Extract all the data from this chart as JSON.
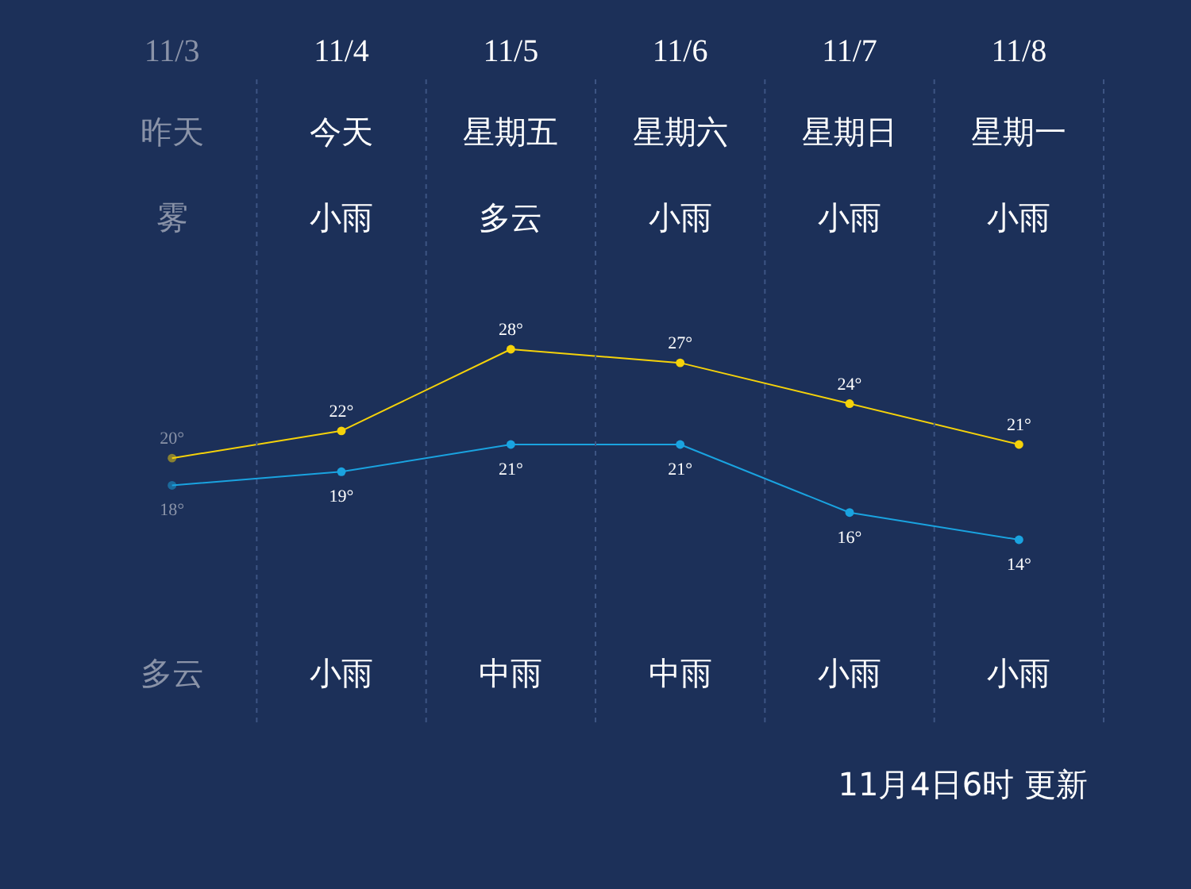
{
  "chart_data": {
    "type": "line",
    "categories": [
      "11/3",
      "11/4",
      "11/5",
      "11/6",
      "11/7",
      "11/8"
    ],
    "series": [
      {
        "color": "#f5d20a",
        "values": [
          20,
          22,
          28,
          27,
          24,
          21
        ],
        "value_labels": [
          "20°",
          "22°",
          "28°",
          "27°",
          "24°",
          "21°"
        ]
      },
      {
        "color": "#1aa3e0",
        "values": [
          18,
          19,
          21,
          21,
          16,
          14
        ],
        "value_labels": [
          "18°",
          "19°",
          "21°",
          "21°",
          "16°",
          "14°"
        ]
      }
    ],
    "tick_labels": "x",
    "grid": "x",
    "marker": "circle",
    "line_style": "solid",
    "annotations": [
      "昨天",
      "今天",
      "星期五",
      "星期六",
      "星期日",
      "星期一",
      "雾",
      "小雨",
      "多云",
      "小雨",
      "小雨",
      "小雨",
      "多云",
      "小雨",
      "中雨",
      "中雨",
      "小雨",
      "小雨",
      "11月4日6时 更新"
    ]
  }
}
